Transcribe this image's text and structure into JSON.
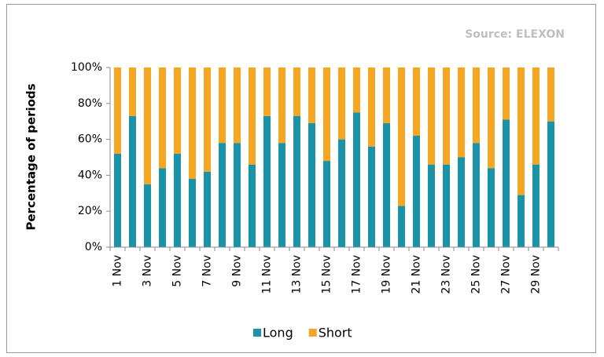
{
  "chart_data": {
    "type": "stacked_bar_percent",
    "source": "Source: ELEXON",
    "y_label": "Percentage of periods",
    "categories": [
      "1 Nov",
      null,
      "3 Nov",
      null,
      "5 Nov",
      null,
      "7 Nov",
      null,
      "9 Nov",
      null,
      "11 Nov",
      null,
      "13 Nov",
      null,
      "15 Nov",
      null,
      "17 Nov",
      null,
      "19 Nov",
      null,
      "21 Nov",
      null,
      "23 Nov",
      null,
      "25 Nov",
      null,
      "27 Nov",
      null,
      "29 Nov",
      null
    ],
    "series": [
      {
        "name": "Long",
        "color": "#1a93a8",
        "values": [
          52,
          73,
          35,
          44,
          52,
          38,
          42,
          58,
          58,
          46,
          73,
          58,
          73,
          69,
          48,
          60,
          75,
          56,
          69,
          23,
          62,
          46,
          46,
          50,
          58,
          44,
          71,
          29,
          46,
          70
        ]
      },
      {
        "name": "Short",
        "color": "#f5a623",
        "values": [
          48,
          27,
          65,
          56,
          48,
          62,
          58,
          42,
          42,
          54,
          27,
          42,
          27,
          31,
          52,
          40,
          25,
          44,
          31,
          77,
          38,
          54,
          54,
          50,
          42,
          56,
          29,
          71,
          54,
          30
        ]
      }
    ],
    "ylim": [
      0,
      100
    ],
    "yticks": [
      {
        "value": 0,
        "label": "0%"
      },
      {
        "value": 20,
        "label": "20%"
      },
      {
        "value": 40,
        "label": "40%"
      },
      {
        "value": 60,
        "label": "60%"
      },
      {
        "value": 80,
        "label": "80%"
      },
      {
        "value": 100,
        "label": "100%"
      }
    ],
    "grid": false,
    "legend": "bottom"
  }
}
